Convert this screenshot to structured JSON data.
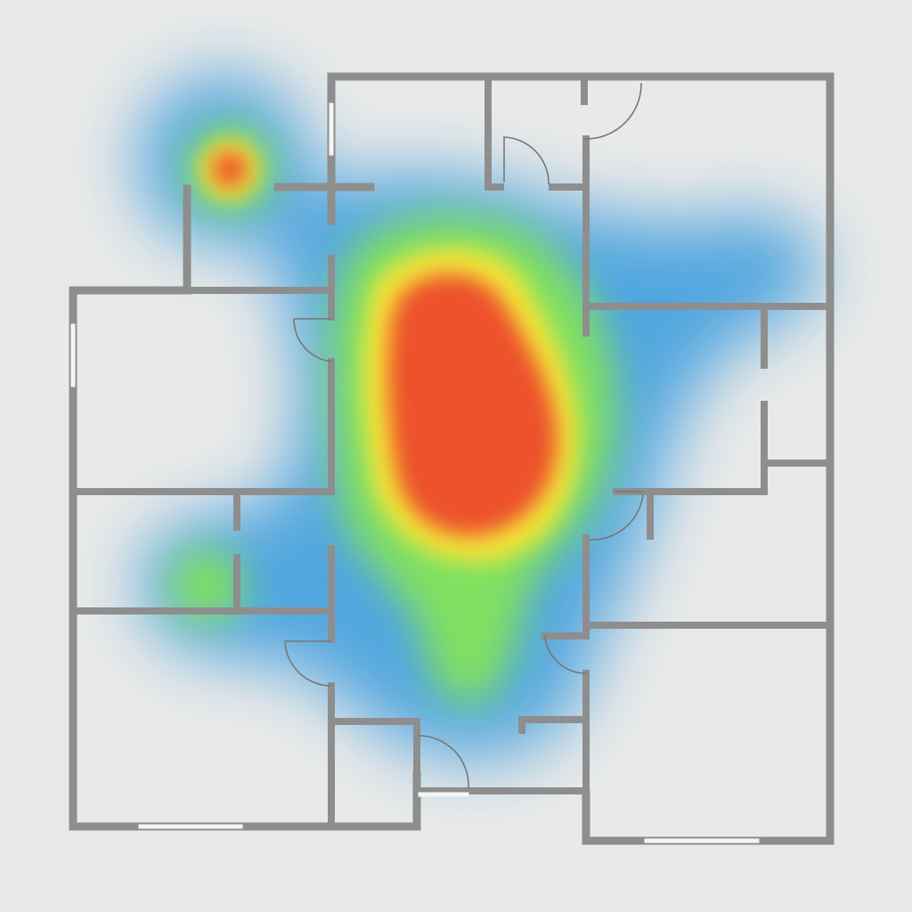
{
  "colors": {
    "background": "#e9e9e8",
    "wall": "#8e8e8e",
    "window": "#f5f5f4",
    "door_arc": "#777777",
    "heat_low": "#4aa3df",
    "heat_mid": "#7be05a",
    "heat_warm": "#f5e52e",
    "heat_high": "#ee4a22"
  },
  "heatmap": {
    "hotspots": [
      {
        "name": "central-hall",
        "intensity": 1.0
      },
      {
        "name": "top-left-corner",
        "intensity": 0.95
      },
      {
        "name": "lower-left-room",
        "intensity": 0.6
      },
      {
        "name": "south-corridor",
        "intensity": 0.55
      },
      {
        "name": "east-wing",
        "intensity": 0.3
      }
    ]
  }
}
